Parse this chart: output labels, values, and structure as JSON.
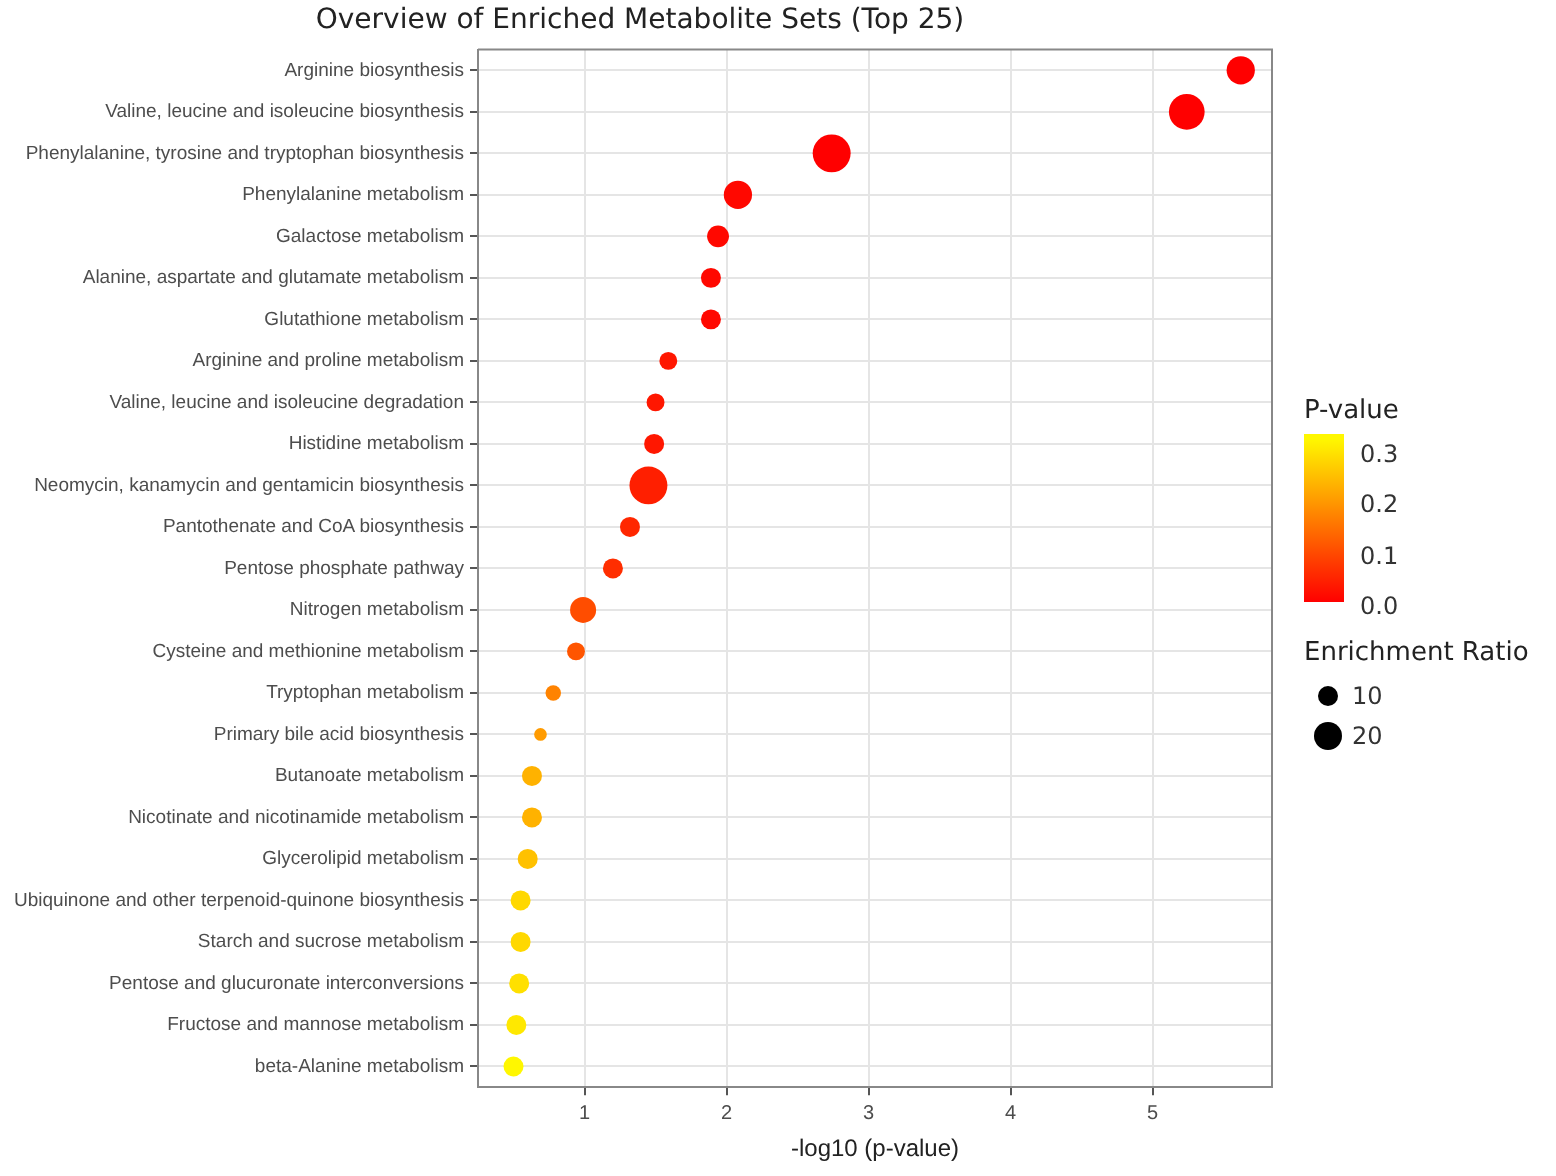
{
  "chart_data": {
    "type": "bubble",
    "title": "Overview of Enriched Metabolite Sets (Top 25)",
    "xlabel": "-log10 (p-value)",
    "clabel": "P-value",
    "legend_title": "Enrichment Ratio",
    "grid": true,
    "categories": [
      "Arginine biosynthesis",
      "Valine, leucine and isoleucine biosynthesis",
      "Phenylalanine, tyrosine and tryptophan biosynthesis",
      "Phenylalanine metabolism",
      "Galactose metabolism",
      "Alanine, aspartate and glutamate metabolism",
      "Glutathione metabolism",
      "Arginine and proline metabolism",
      "Valine, leucine and isoleucine degradation",
      "Histidine metabolism",
      "Neomycin, kanamycin and gentamicin biosynthesis",
      "Pantothenate and CoA biosynthesis",
      "Pentose phosphate pathway",
      "Nitrogen metabolism",
      "Cysteine and methionine metabolism",
      "Tryptophan metabolism",
      "Primary bile acid biosynthesis",
      "Butanoate metabolism",
      "Nicotinate and nicotinamide metabolism",
      "Glycerolipid metabolism",
      "Ubiquinone and other terpenoid-quinone biosynthesis",
      "Starch and sucrose metabolism",
      "Pentose and glucuronate interconversions",
      "Fructose and mannose metabolism",
      "beta-Alanine metabolism"
    ],
    "values": [
      5.62,
      5.24,
      2.74,
      2.08,
      1.94,
      1.89,
      1.89,
      1.59,
      1.5,
      1.49,
      1.45,
      1.32,
      1.2,
      0.99,
      0.94,
      0.78,
      0.69,
      0.63,
      0.63,
      0.6,
      0.55,
      0.55,
      0.54,
      0.52,
      0.5
    ],
    "sizes": [
      20,
      32,
      36,
      20,
      12,
      10,
      10,
      8,
      8,
      10,
      36,
      10,
      10,
      17,
      8,
      6,
      4,
      10,
      10,
      10,
      10,
      10,
      10,
      10,
      10
    ],
    "size_legend": [
      10,
      20
    ],
    "cvalues": [
      0.0,
      0.0,
      0.0,
      0.01,
      0.01,
      0.01,
      0.01,
      0.03,
      0.03,
      0.03,
      0.04,
      0.05,
      0.06,
      0.1,
      0.11,
      0.17,
      0.2,
      0.23,
      0.23,
      0.25,
      0.28,
      0.28,
      0.29,
      0.3,
      0.32
    ],
    "colors": [
      "#ff0000",
      "#ff0000",
      "#ff0000",
      "#ff0800",
      "#ff0800",
      "#ff0800",
      "#ff0800",
      "#ff1700",
      "#ff1700",
      "#ff1700",
      "#ff1f00",
      "#ff2700",
      "#ff2e00",
      "#ff4d00",
      "#ff5500",
      "#ff8300",
      "#ff9b00",
      "#ffb200",
      "#ffb200",
      "#ffc100",
      "#ffd800",
      "#ffd800",
      "#ffe000",
      "#ffe800",
      "#fff700"
    ],
    "orientation": "horizontal",
    "clim": [
      0,
      0.33
    ],
    "cticks": [
      {
        "value": 0,
        "label": "0.0"
      },
      {
        "value": 0.1,
        "label": "0.1"
      },
      {
        "value": 0.2,
        "label": "0.2"
      },
      {
        "value": 0.3,
        "label": "0.3"
      }
    ],
    "xlim": [
      0.25,
      5.84
    ],
    "xticks": [
      1,
      2,
      3,
      4,
      5
    ]
  }
}
